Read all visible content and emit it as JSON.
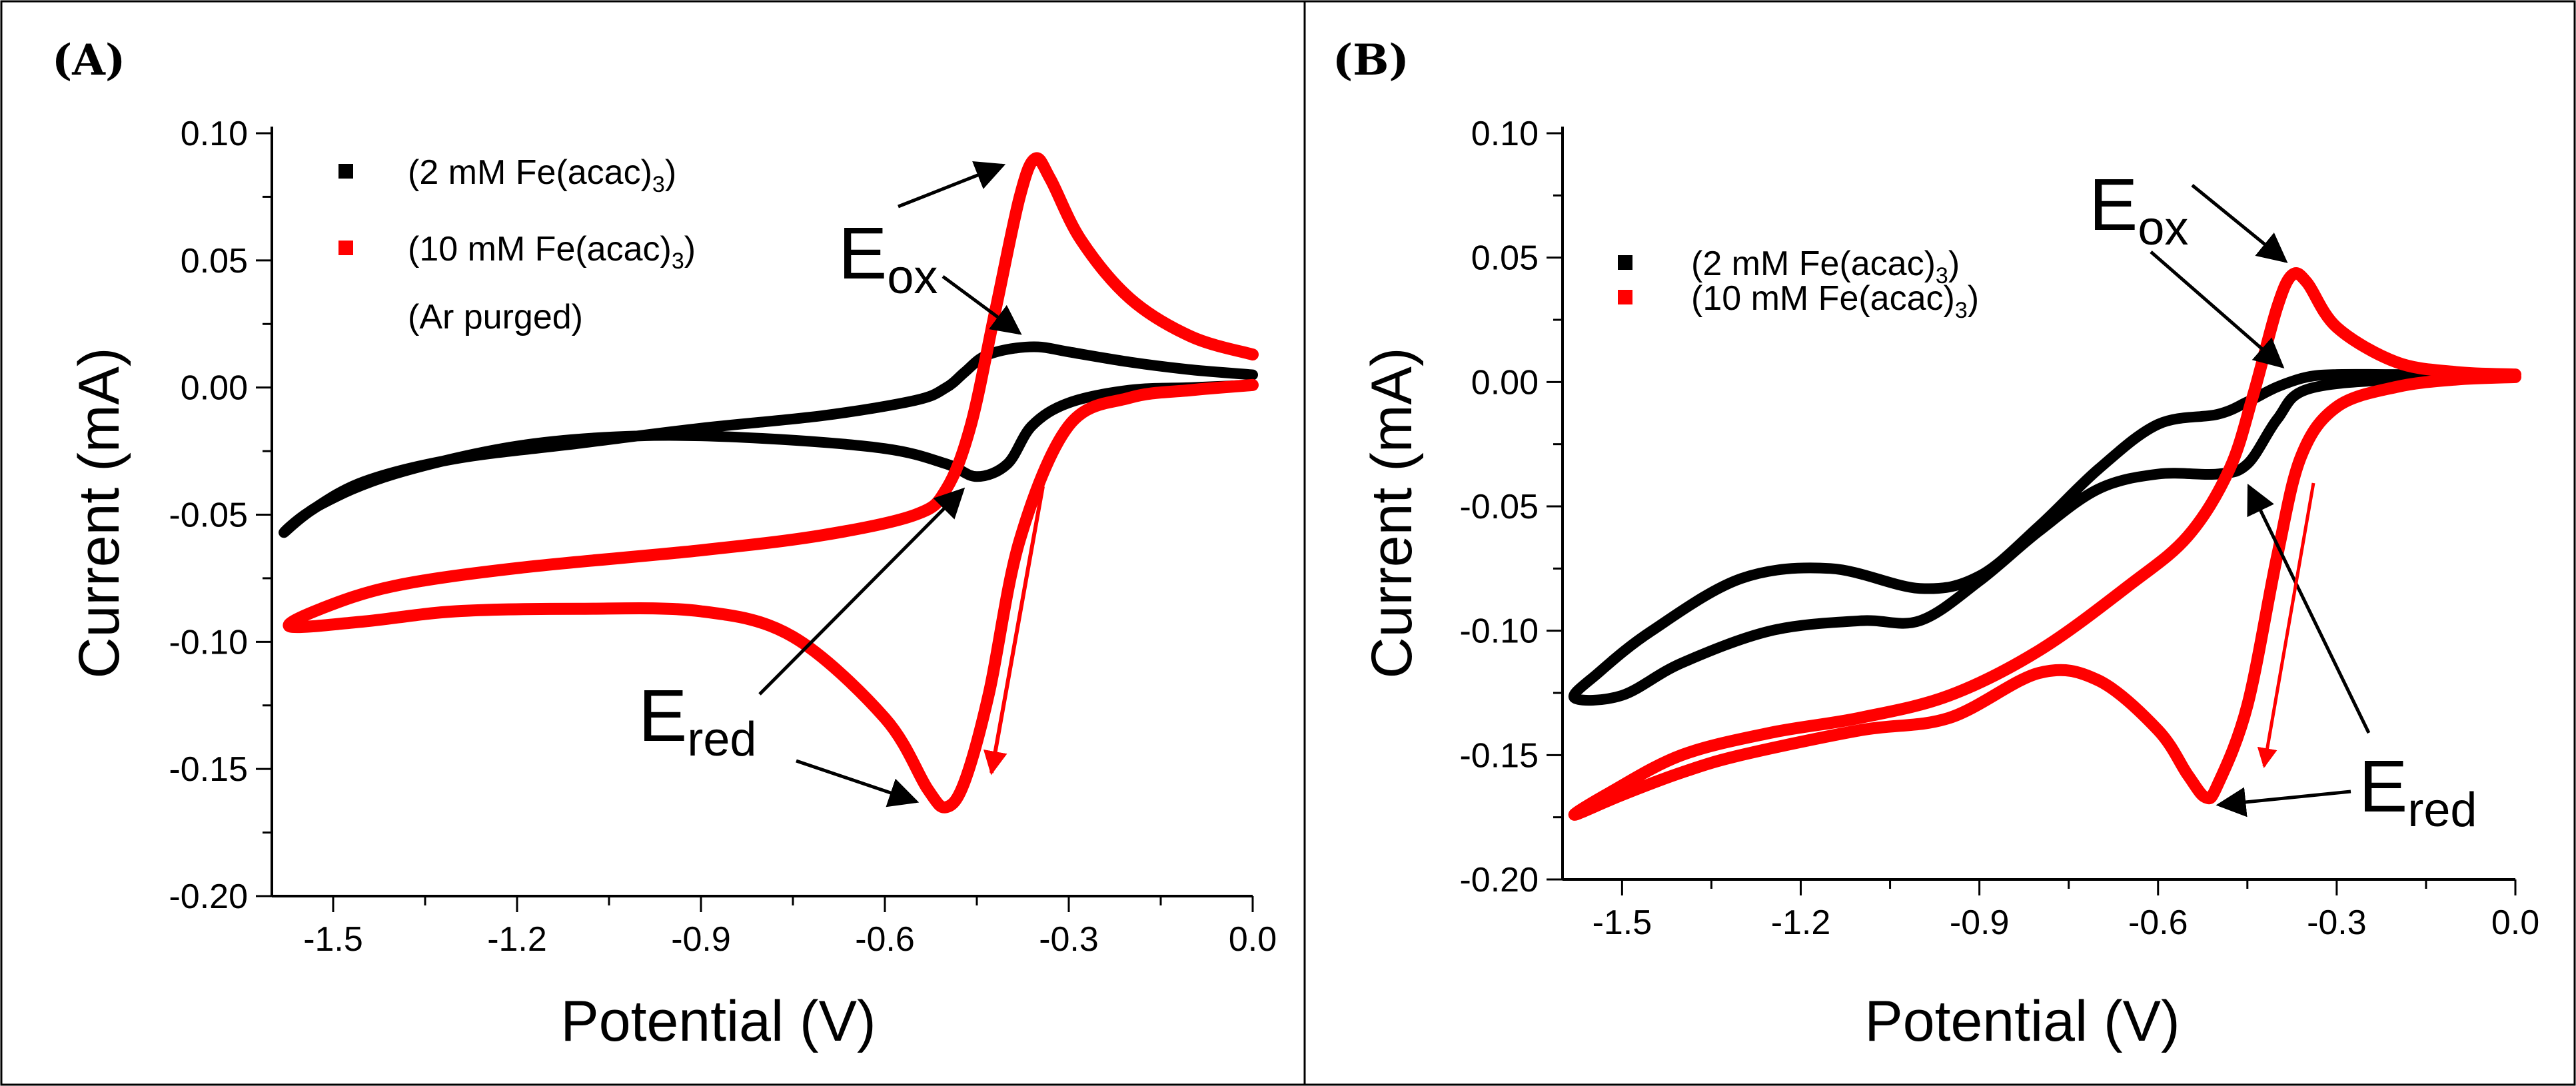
{
  "chart_data": [
    {
      "panel_label": "(A)",
      "type": "line",
      "xlabel": "Potential (V)",
      "ylabel": "Current (mA)",
      "xlim": [
        -1.6,
        0.0
      ],
      "ylim": [
        -0.2,
        0.1
      ],
      "xticks": [
        "-1.5",
        "-1.2",
        "-0.9",
        "-0.6",
        "-0.3",
        "0.0"
      ],
      "xtick_values": [
        -1.5,
        -1.2,
        -0.9,
        -0.6,
        -0.3,
        0.0
      ],
      "yticks": [
        "0.10",
        "0.05",
        "0.00",
        "-0.05",
        "-0.10",
        "-0.15",
        "-0.20"
      ],
      "ytick_values": [
        0.1,
        0.05,
        0.0,
        -0.05,
        -0.1,
        -0.15,
        -0.2
      ],
      "legend_position": "top-left",
      "legend_note": "(Ar purged)",
      "series": [
        {
          "name": "(2 mM Fe(acac)",
          "subscript": "3",
          "close": ")",
          "color": "#000000",
          "x": [
            0.0,
            -0.1,
            -0.2,
            -0.3,
            -0.36,
            -0.4,
            -0.45,
            -0.5,
            -0.6,
            -0.8,
            -1.0,
            -1.2,
            -1.4,
            -1.52,
            -1.58,
            -1.54,
            -1.45,
            -1.3,
            -1.1,
            -0.9,
            -0.7,
            -0.55,
            -0.5,
            -0.47,
            -0.44,
            -0.4,
            -0.35,
            -0.3,
            -0.2,
            -0.1,
            0.0
          ],
          "y": [
            0.001,
            0.0,
            -0.001,
            -0.006,
            -0.015,
            -0.03,
            -0.035,
            -0.03,
            -0.024,
            -0.02,
            -0.019,
            -0.023,
            -0.034,
            -0.046,
            -0.057,
            -0.049,
            -0.037,
            -0.028,
            -0.022,
            -0.016,
            -0.011,
            -0.005,
            0.0,
            0.006,
            0.012,
            0.015,
            0.016,
            0.014,
            0.01,
            0.007,
            0.005
          ]
        },
        {
          "name": "(10 mM Fe(acac)",
          "subscript": "3",
          "close": ")",
          "color": "#ff0000",
          "x": [
            0.0,
            -0.1,
            -0.2,
            -0.3,
            -0.38,
            -0.43,
            -0.47,
            -0.5,
            -0.53,
            -0.6,
            -0.75,
            -0.9,
            -1.1,
            -1.3,
            -1.45,
            -1.57,
            -1.52,
            -1.4,
            -1.2,
            -0.9,
            -0.7,
            -0.55,
            -0.5,
            -0.46,
            -0.42,
            -0.38,
            -0.355,
            -0.33,
            -0.28,
            -0.2,
            -0.1,
            0.0
          ],
          "y": [
            0.001,
            -0.001,
            -0.004,
            -0.015,
            -0.06,
            -0.12,
            -0.155,
            -0.165,
            -0.158,
            -0.13,
            -0.098,
            -0.088,
            -0.087,
            -0.088,
            -0.092,
            -0.094,
            -0.087,
            -0.078,
            -0.071,
            -0.064,
            -0.058,
            -0.05,
            -0.04,
            -0.015,
            0.03,
            0.075,
            0.09,
            0.082,
            0.058,
            0.035,
            0.02,
            0.013
          ]
        }
      ],
      "annotations": [
        {
          "text": "E",
          "sub": "ox"
        },
        {
          "text": "E",
          "sub": "red"
        }
      ]
    },
    {
      "panel_label": "(B)",
      "type": "line",
      "xlabel": "Potential (V)",
      "ylabel": "Current (mA)",
      "xlim": [
        -1.6,
        0.0
      ],
      "ylim": [
        -0.2,
        0.1
      ],
      "xticks": [
        "-1.5",
        "-1.2",
        "-0.9",
        "-0.6",
        "-0.3",
        "0.0"
      ],
      "xtick_values": [
        -1.5,
        -1.2,
        -0.9,
        -0.6,
        -0.3,
        0.0
      ],
      "yticks": [
        "0.10",
        "0.05",
        "0.00",
        "-0.05",
        "-0.10",
        "-0.15",
        "-0.20"
      ],
      "ytick_values": [
        0.1,
        0.05,
        0.0,
        -0.05,
        -0.1,
        -0.15,
        -0.2
      ],
      "legend_position": "top-left",
      "series": [
        {
          "name": "(2 mM Fe(acac)",
          "subscript": "3",
          "close": ")",
          "color": "#000000",
          "x": [
            0.0,
            -0.2,
            -0.35,
            -0.4,
            -0.45,
            -0.5,
            -0.6,
            -0.7,
            -0.8,
            -0.9,
            -1.0,
            -1.1,
            -1.25,
            -1.4,
            -1.5,
            -1.58,
            -1.54,
            -1.45,
            -1.3,
            -1.15,
            -1.0,
            -0.9,
            -0.8,
            -0.7,
            -0.6,
            -0.5,
            -0.45,
            -0.4,
            -0.35,
            -0.3,
            -0.2,
            -0.1,
            0.0
          ],
          "y": [
            0.002,
            0.001,
            -0.003,
            -0.015,
            -0.033,
            -0.037,
            -0.037,
            -0.043,
            -0.06,
            -0.08,
            -0.096,
            -0.096,
            -0.1,
            -0.113,
            -0.126,
            -0.127,
            -0.117,
            -0.1,
            -0.079,
            -0.075,
            -0.083,
            -0.078,
            -0.058,
            -0.035,
            -0.017,
            -0.013,
            -0.008,
            -0.002,
            0.002,
            0.003,
            0.003,
            0.003,
            0.003
          ]
        },
        {
          "name": "(10 mM Fe(acac)",
          "subscript": "3",
          "close": ")",
          "color": "#ff0000",
          "x": [
            0.0,
            -0.1,
            -0.2,
            -0.3,
            -0.36,
            -0.4,
            -0.45,
            -0.5,
            -0.52,
            -0.55,
            -0.6,
            -0.7,
            -0.8,
            -0.95,
            -1.1,
            -1.3,
            -1.4,
            -1.5,
            -1.58,
            -1.52,
            -1.4,
            -1.25,
            -1.1,
            -0.95,
            -0.8,
            -0.65,
            -0.55,
            -0.48,
            -0.44,
            -0.4,
            -0.375,
            -0.35,
            -0.3,
            -0.2,
            -0.1,
            0.0
          ],
          "y": [
            0.002,
            0.001,
            -0.002,
            -0.01,
            -0.03,
            -0.07,
            -0.13,
            -0.162,
            -0.167,
            -0.158,
            -0.14,
            -0.12,
            -0.117,
            -0.135,
            -0.14,
            -0.15,
            -0.157,
            -0.166,
            -0.174,
            -0.165,
            -0.15,
            -0.141,
            -0.135,
            -0.126,
            -0.108,
            -0.082,
            -0.062,
            -0.035,
            -0.005,
            0.03,
            0.043,
            0.04,
            0.022,
            0.008,
            0.004,
            0.003
          ]
        }
      ],
      "annotations": [
        {
          "text": "E",
          "sub": "ox"
        },
        {
          "text": "E",
          "sub": "red"
        }
      ]
    }
  ]
}
